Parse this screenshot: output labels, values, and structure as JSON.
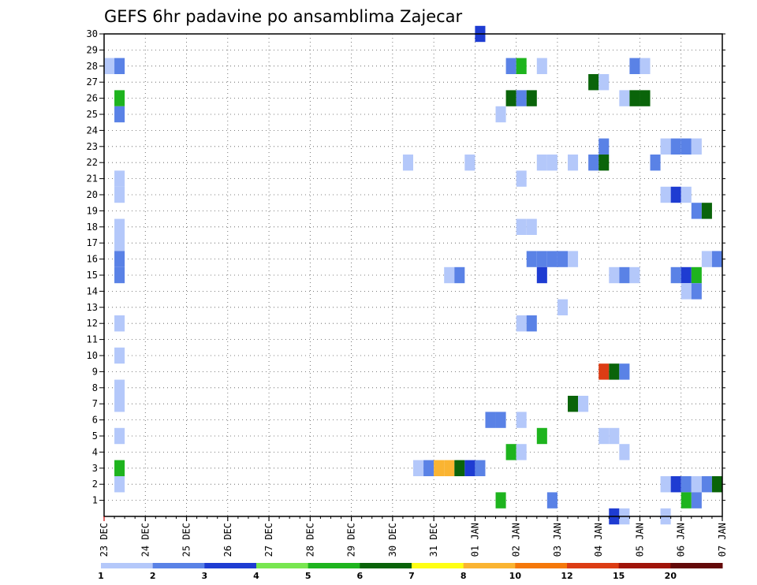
{
  "chart_data": {
    "type": "heatmap",
    "title": "GEFS 6hr padavine po ansamblima Zajecar",
    "xlabel": "",
    "ylabel": "",
    "x_range": [
      "23 DEC 00Z",
      "07 JAN 00Z"
    ],
    "x_step_hours": 6,
    "x_tick_labels": [
      "23 DEC",
      "24 DEC",
      "25 DEC",
      "26 DEC",
      "27 DEC",
      "28 DEC",
      "29 DEC",
      "30 DEC",
      "31 DEC",
      "01 JAN",
      "02 JAN",
      "03 JAN",
      "04 JAN",
      "05 JAN",
      "06 JAN",
      "07 JAN"
    ],
    "y_tick_labels": [
      "1",
      "2",
      "3",
      "4",
      "5",
      "6",
      "7",
      "8",
      "9",
      "10",
      "11",
      "12",
      "13",
      "14",
      "15",
      "16",
      "17",
      "18",
      "19",
      "20",
      "21",
      "22",
      "23",
      "24",
      "25",
      "26",
      "27",
      "28",
      "29",
      "30"
    ],
    "y_range": [
      0,
      30
    ],
    "grid": true,
    "colorbar": {
      "placement": "bottom",
      "labels": [
        "1",
        "2",
        "3",
        "4",
        "5",
        "6",
        "7",
        "8",
        "10",
        "12",
        "15",
        "20"
      ],
      "colors": [
        "#b4c8fa",
        "#5a82e6",
        "#1e3cd2",
        "#78e650",
        "#1eb41e",
        "#0a640a",
        "#ffff14",
        "#fab432",
        "#f5780a",
        "#dc3c14",
        "#a0140a",
        "#640a0a"
      ]
    },
    "cells": [
      [
        "23 DEC 00Z",
        28,
        1
      ],
      [
        "23 DEC 06Z",
        28,
        2
      ],
      [
        "23 DEC 06Z",
        26,
        5
      ],
      [
        "23 DEC 06Z",
        25,
        2
      ],
      [
        "23 DEC 06Z",
        21,
        1
      ],
      [
        "23 DEC 06Z",
        20,
        1
      ],
      [
        "23 DEC 06Z",
        18,
        1
      ],
      [
        "23 DEC 06Z",
        17,
        1
      ],
      [
        "23 DEC 06Z",
        16,
        2
      ],
      [
        "23 DEC 06Z",
        15,
        2
      ],
      [
        "23 DEC 06Z",
        12,
        1
      ],
      [
        "23 DEC 06Z",
        10,
        1
      ],
      [
        "23 DEC 06Z",
        8,
        1
      ],
      [
        "23 DEC 06Z",
        7,
        1
      ],
      [
        "23 DEC 06Z",
        5,
        1
      ],
      [
        "23 DEC 06Z",
        3,
        5
      ],
      [
        "23 DEC 06Z",
        2,
        1
      ],
      [
        "30 DEC 06Z",
        22,
        1
      ],
      [
        "30 DEC 12Z",
        3,
        1
      ],
      [
        "30 DEC 18Z",
        3,
        2
      ],
      [
        "31 DEC 00Z",
        3,
        8
      ],
      [
        "31 DEC 06Z",
        3,
        8
      ],
      [
        "31 DEC 12Z",
        3,
        6
      ],
      [
        "31 DEC 18Z",
        3,
        3
      ],
      [
        "01 JAN 00Z",
        3,
        2
      ],
      [
        "31 DEC 06Z",
        15,
        1
      ],
      [
        "31 DEC 12Z",
        15,
        2
      ],
      [
        "31 DEC 18Z",
        22,
        1
      ],
      [
        "01 JAN 00Z",
        30,
        3
      ],
      [
        "01 JAN 06Z",
        6,
        2
      ],
      [
        "01 JAN 12Z",
        6,
        2
      ],
      [
        "01 JAN 12Z",
        25,
        1
      ],
      [
        "01 JAN 12Z",
        1,
        5
      ],
      [
        "01 JAN 18Z",
        26,
        6
      ],
      [
        "01 JAN 18Z",
        28,
        2
      ],
      [
        "01 JAN 18Z",
        4,
        5
      ],
      [
        "02 JAN 00Z",
        26,
        2
      ],
      [
        "02 JAN 00Z",
        28,
        5
      ],
      [
        "02 JAN 00Z",
        21,
        1
      ],
      [
        "02 JAN 00Z",
        18,
        1
      ],
      [
        "02 JAN 00Z",
        12,
        1
      ],
      [
        "02 JAN 00Z",
        6,
        1
      ],
      [
        "02 JAN 00Z",
        4,
        1
      ],
      [
        "02 JAN 06Z",
        26,
        6
      ],
      [
        "02 JAN 06Z",
        18,
        1
      ],
      [
        "02 JAN 06Z",
        16,
        2
      ],
      [
        "02 JAN 06Z",
        12,
        2
      ],
      [
        "02 JAN 12Z",
        28,
        1
      ],
      [
        "02 JAN 12Z",
        22,
        1
      ],
      [
        "02 JAN 12Z",
        16,
        2
      ],
      [
        "02 JAN 12Z",
        15,
        3
      ],
      [
        "02 JAN 12Z",
        5,
        5
      ],
      [
        "02 JAN 18Z",
        22,
        1
      ],
      [
        "02 JAN 18Z",
        16,
        2
      ],
      [
        "02 JAN 18Z",
        1,
        2
      ],
      [
        "03 JAN 00Z",
        16,
        2
      ],
      [
        "03 JAN 00Z",
        13,
        1
      ],
      [
        "03 JAN 06Z",
        22,
        1
      ],
      [
        "03 JAN 06Z",
        16,
        1
      ],
      [
        "03 JAN 06Z",
        7,
        6
      ],
      [
        "03 JAN 12Z",
        7,
        1
      ],
      [
        "03 JAN 18Z",
        27,
        6
      ],
      [
        "03 JAN 18Z",
        22,
        2
      ],
      [
        "04 JAN 00Z",
        27,
        1
      ],
      [
        "04 JAN 00Z",
        23,
        2
      ],
      [
        "04 JAN 00Z",
        22,
        6
      ],
      [
        "04 JAN 00Z",
        9,
        10
      ],
      [
        "04 JAN 00Z",
        5,
        1
      ],
      [
        "04 JAN 06Z",
        9,
        6
      ],
      [
        "04 JAN 06Z",
        5,
        1
      ],
      [
        "04 JAN 06Z",
        15,
        1
      ],
      [
        "04 JAN 06Z",
        0,
        3
      ],
      [
        "04 JAN 12Z",
        9,
        2
      ],
      [
        "04 JAN 12Z",
        4,
        1
      ],
      [
        "04 JAN 12Z",
        26,
        1
      ],
      [
        "04 JAN 12Z",
        15,
        2
      ],
      [
        "04 JAN 12Z",
        0,
        1
      ],
      [
        "04 JAN 18Z",
        28,
        2
      ],
      [
        "04 JAN 18Z",
        26,
        6
      ],
      [
        "04 JAN 18Z",
        15,
        1
      ],
      [
        "05 JAN 00Z",
        28,
        1
      ],
      [
        "05 JAN 00Z",
        26,
        6
      ],
      [
        "05 JAN 06Z",
        22,
        2
      ],
      [
        "05 JAN 12Z",
        23,
        1
      ],
      [
        "05 JAN 12Z",
        20,
        1
      ],
      [
        "05 JAN 12Z",
        2,
        1
      ],
      [
        "05 JAN 12Z",
        0,
        1
      ],
      [
        "05 JAN 18Z",
        23,
        2
      ],
      [
        "05 JAN 18Z",
        20,
        3
      ],
      [
        "05 JAN 18Z",
        15,
        2
      ],
      [
        "05 JAN 18Z",
        2,
        3
      ],
      [
        "06 JAN 00Z",
        23,
        2
      ],
      [
        "06 JAN 00Z",
        20,
        1
      ],
      [
        "06 JAN 00Z",
        15,
        3
      ],
      [
        "06 JAN 00Z",
        14,
        1
      ],
      [
        "06 JAN 00Z",
        2,
        2
      ],
      [
        "06 JAN 00Z",
        1,
        5
      ],
      [
        "06 JAN 06Z",
        23,
        1
      ],
      [
        "06 JAN 06Z",
        19,
        2
      ],
      [
        "06 JAN 06Z",
        15,
        5
      ],
      [
        "06 JAN 06Z",
        14,
        2
      ],
      [
        "06 JAN 06Z",
        2,
        1
      ],
      [
        "06 JAN 06Z",
        1,
        2
      ],
      [
        "06 JAN 12Z",
        19,
        6
      ],
      [
        "06 JAN 12Z",
        16,
        1
      ],
      [
        "06 JAN 12Z",
        2,
        2
      ],
      [
        "06 JAN 18Z",
        16,
        2
      ],
      [
        "06 JAN 18Z",
        2,
        6
      ]
    ]
  }
}
